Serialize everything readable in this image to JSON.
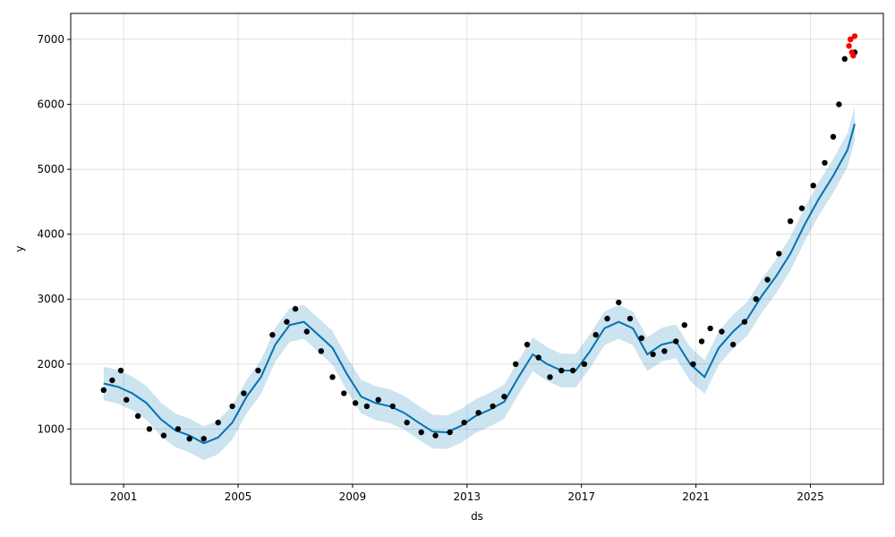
{
  "chart_data": {
    "type": "scatter",
    "xlabel": "ds",
    "ylabel": "y",
    "x_tick_labels": [
      "2001",
      "2005",
      "2009",
      "2013",
      "2017",
      "2021",
      "2025"
    ],
    "y_tick_labels": [
      "1000",
      "2000",
      "3000",
      "4000",
      "5000",
      "6000",
      "7000"
    ],
    "xlim": [
      1999.15,
      2027.55
    ],
    "ylim": [
      150,
      7400
    ],
    "grid": true,
    "legend": "none",
    "colors": {
      "observed": "#000000",
      "forecast_line": "#0072B2",
      "uncertainty_band": "#0072B2",
      "recent_points": "#ff0000"
    },
    "series": [
      {
        "role": "observed",
        "x": [
          2000.3,
          2000.6,
          2000.9,
          2001.1,
          2001.5,
          2001.9,
          2002.4,
          2002.9,
          2003.3,
          2003.8,
          2004.3,
          2004.8,
          2005.2,
          2005.7,
          2006.2,
          2006.7,
          2007.0,
          2007.4,
          2007.9,
          2008.3,
          2008.7,
          2009.1,
          2009.5,
          2009.9,
          2010.4,
          2010.9,
          2011.4,
          2011.9,
          2012.4,
          2012.9,
          2013.4,
          2013.9,
          2014.3,
          2014.7,
          2015.1,
          2015.5,
          2015.9,
          2016.3,
          2016.7,
          2017.1,
          2017.5,
          2017.9,
          2018.3,
          2018.7,
          2019.1,
          2019.5,
          2019.9,
          2020.3,
          2020.6,
          2020.9,
          2021.2,
          2021.5,
          2021.9,
          2022.3,
          2022.7,
          2023.1,
          2023.5,
          2023.9,
          2024.3,
          2024.7,
          2025.1,
          2025.5,
          2025.8,
          2026.0,
          2026.2,
          2026.4,
          2026.55
        ],
        "y": [
          1600,
          1750,
          1900,
          1450,
          1200,
          1000,
          900,
          1000,
          850,
          850,
          1100,
          1350,
          1550,
          1900,
          2450,
          2650,
          2850,
          2500,
          2200,
          1800,
          1550,
          1400,
          1350,
          1450,
          1350,
          1100,
          950,
          900,
          950,
          1100,
          1250,
          1350,
          1500,
          2000,
          2300,
          2100,
          1800,
          1900,
          1900,
          2000,
          2450,
          2700,
          2950,
          2700,
          2400,
          2150,
          2200,
          2350,
          2600,
          2000,
          2350,
          2550,
          2500,
          2300,
          2650,
          3000,
          3300,
          3700,
          4200,
          4400,
          4750,
          5100,
          5500,
          6000,
          6700,
          7000,
          6800
        ]
      },
      {
        "role": "fitted_trend",
        "x": [
          2000.3,
          2000.8,
          2001.3,
          2001.8,
          2002.3,
          2002.8,
          2003.3,
          2003.8,
          2004.3,
          2004.8,
          2005.3,
          2005.8,
          2006.3,
          2006.8,
          2007.3,
          2007.8,
          2008.3,
          2008.8,
          2009.3,
          2009.8,
          2010.3,
          2010.8,
          2011.3,
          2011.8,
          2012.3,
          2012.8,
          2013.3,
          2013.8,
          2014.3,
          2014.8,
          2015.3,
          2015.8,
          2016.3,
          2016.8,
          2017.3,
          2017.8,
          2018.3,
          2018.8,
          2019.3,
          2019.8,
          2020.3,
          2020.8,
          2021.3,
          2021.8,
          2022.3,
          2022.8,
          2023.3,
          2023.8,
          2024.3,
          2024.8,
          2025.3,
          2025.8,
          2026.3,
          2026.55
        ],
        "y": [
          1700,
          1650,
          1550,
          1400,
          1150,
          980,
          900,
          780,
          870,
          1100,
          1500,
          1800,
          2300,
          2600,
          2650,
          2450,
          2250,
          1850,
          1500,
          1400,
          1350,
          1250,
          1100,
          960,
          950,
          1050,
          1200,
          1300,
          1420,
          1800,
          2150,
          2000,
          1900,
          1900,
          2200,
          2550,
          2650,
          2550,
          2150,
          2300,
          2350,
          2000,
          1800,
          2250,
          2500,
          2700,
          3050,
          3350,
          3700,
          4150,
          4550,
          4900,
          5300,
          5700
        ]
      },
      {
        "role": "recent_points",
        "x": [
          2026.35,
          2026.4,
          2026.45,
          2026.5,
          2026.55
        ],
        "y": [
          6900,
          7000,
          6800,
          6750,
          7050
        ]
      }
    ]
  }
}
